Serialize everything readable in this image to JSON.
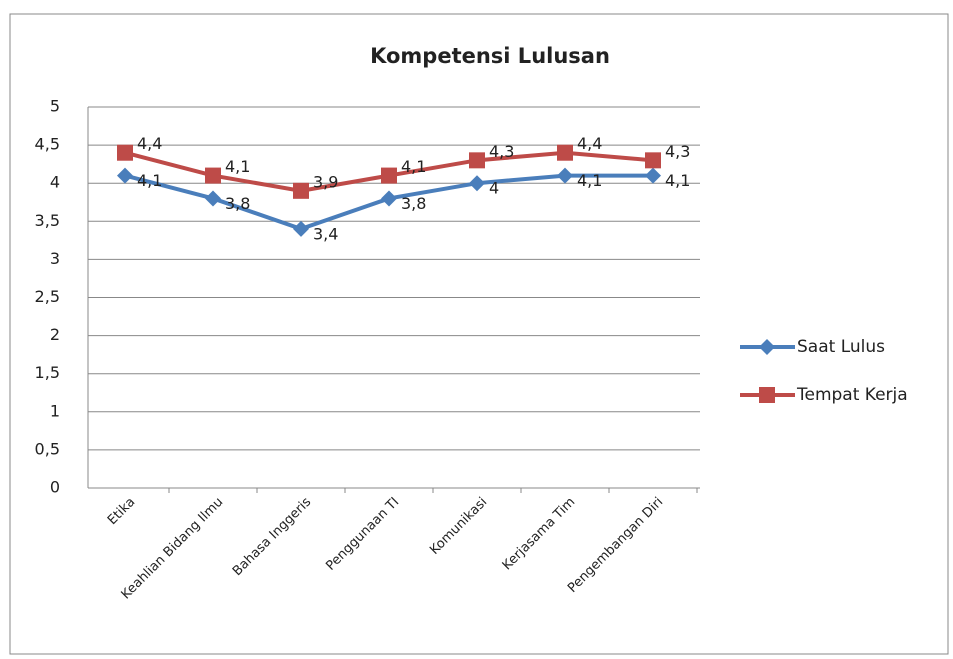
{
  "chart_data": {
    "type": "line",
    "title": "Kompetensi Lulusan",
    "categories": [
      "Etika",
      "Keahlian Bidang Ilmu",
      "Bahasa Inggeris",
      "Penggunaan TI",
      "Komunikasi",
      "Kerjasama Tim",
      "Pengembangan Diri"
    ],
    "series": [
      {
        "name": "Saat Lulus",
        "color": "#4a7ebb",
        "values": [
          4.1,
          3.8,
          3.4,
          3.8,
          4,
          4.1,
          4.1
        ],
        "value_labels": [
          "4,1",
          "3,8",
          "3,4",
          "3,8",
          "4",
          "4,1",
          "4,1"
        ]
      },
      {
        "name": "Tempat Kerja",
        "color": "#be4b48",
        "values": [
          4.4,
          4.1,
          3.9,
          4.1,
          4.3,
          4.4,
          4.3
        ],
        "value_labels": [
          "4,4",
          "4,1",
          "3,9",
          "4,1",
          "4,3",
          "4,4",
          "4,3"
        ]
      }
    ],
    "ylim": [
      0,
      5
    ],
    "yticks": [
      0,
      {
        "value": 0.5,
        "label": "0,5"
      },
      1,
      {
        "value": 1.5,
        "label": "1,5"
      },
      2,
      {
        "value": 2.5,
        "label": "2,5"
      },
      3,
      {
        "value": 3.5,
        "label": "3,5"
      },
      4,
      {
        "value": 4.5,
        "label": "4,5"
      },
      5
    ],
    "grid": true,
    "legend": "right"
  }
}
